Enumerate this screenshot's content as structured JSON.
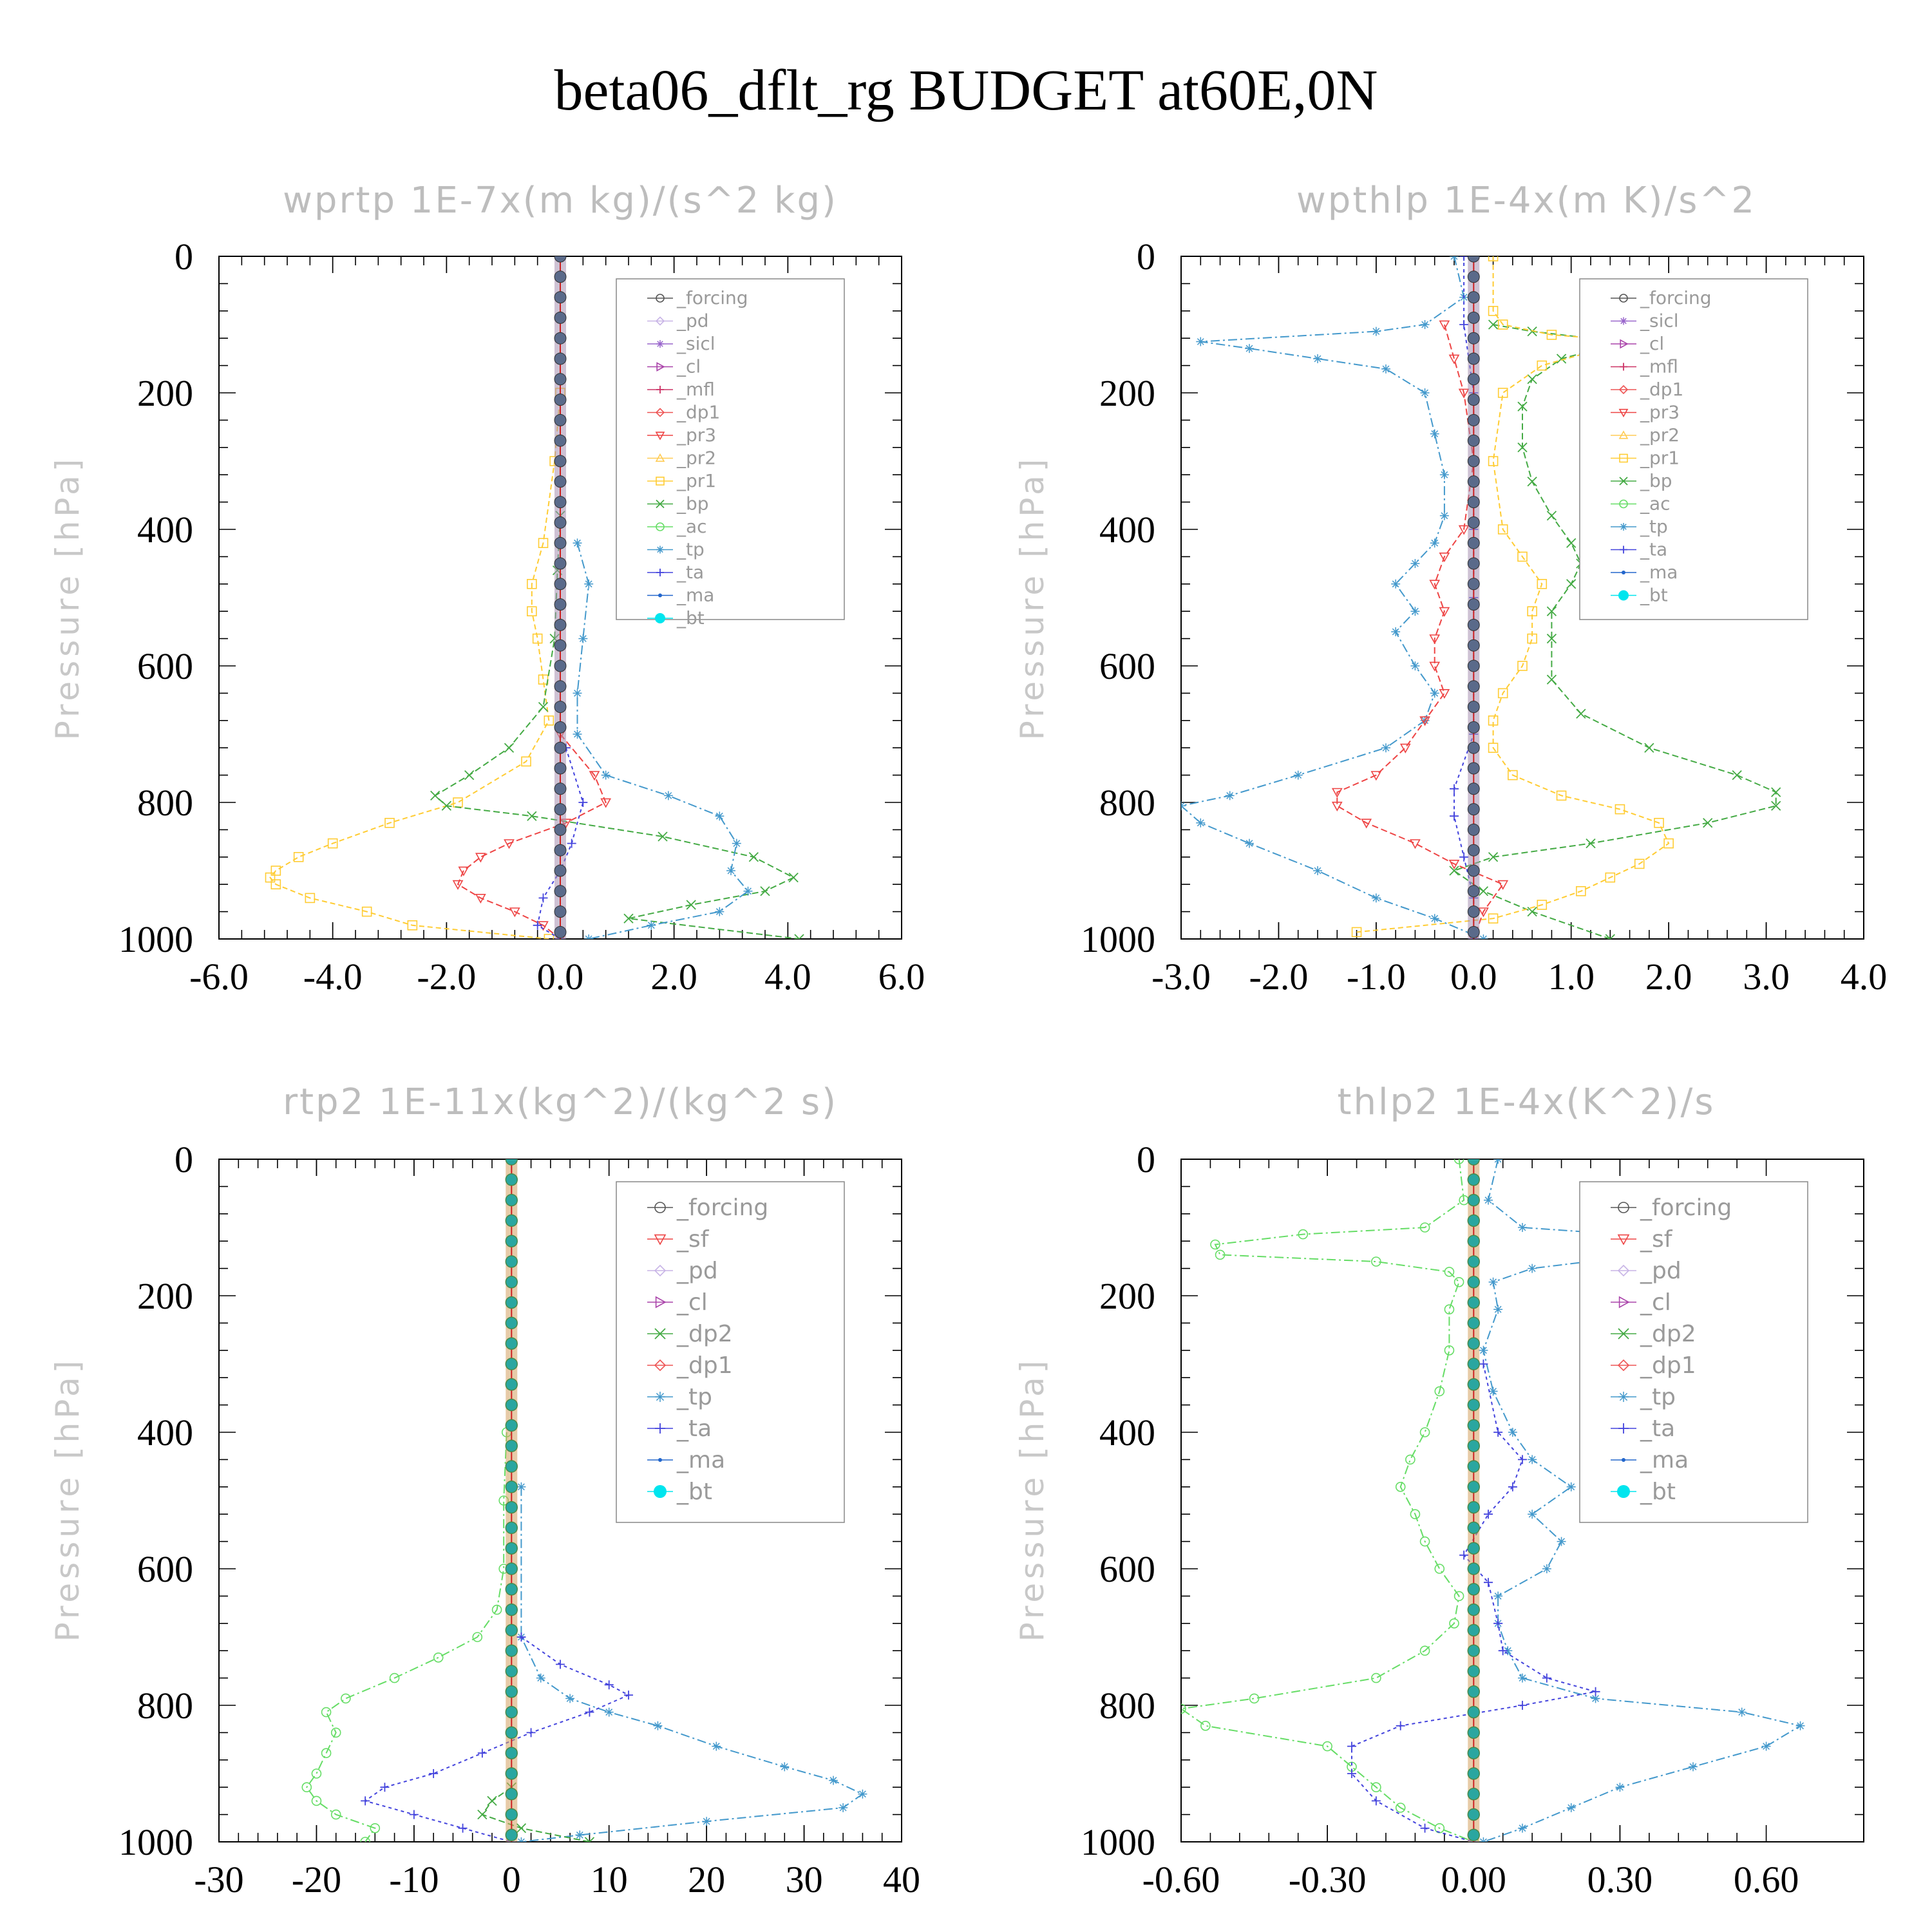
{
  "title": "beta06_dflt_rg  BUDGET at60E,0N",
  "colors": {
    "forcing": "#555555",
    "pd": "#c8b4e6",
    "sicl": "#9966cc",
    "cl": "#aa44aa",
    "mfl": "#cc3366",
    "dp1": "#ee5555",
    "pr3": "#ee4444",
    "pr2": "#ffcc55",
    "pr1": "#ffcc33",
    "bp": "#44aa44",
    "ac": "#66dd66",
    "tp": "#4499cc",
    "ta": "#4444dd",
    "ma": "#2266cc",
    "bt": "#00e5ee"
  },
  "chart_data": [
    {
      "type": "line",
      "title": "wprtp  1E-7x(m kg)/(s^2 kg)",
      "ylabel": "Pressure [hPa]",
      "xlim": [
        -6,
        6
      ],
      "ylim": [
        1000,
        0
      ],
      "xticks": [
        "-6.0",
        "-4.0",
        "-2.0",
        "0.0",
        "2.0",
        "4.0",
        "6.0"
      ],
      "xtick_values": [
        -6,
        -4,
        -2,
        0,
        2,
        4,
        6
      ],
      "yticks": [
        "0",
        "200",
        "400",
        "600",
        "800",
        "1000"
      ],
      "legend": [
        "_forcing",
        "_pd",
        "_sicl",
        "_cl",
        "_mfl",
        "_dp1",
        "_pr3",
        "_pr2",
        "_pr1",
        "_bp",
        "_ac",
        "_tp",
        "_ta",
        "_ma",
        "_bt"
      ],
      "series": [
        {
          "name": "_pr1",
          "color": "pr1",
          "marker": "square",
          "dash": "8,5",
          "p": [
            200,
            300,
            420,
            480,
            520,
            560,
            620,
            680,
            740,
            800,
            830,
            860,
            880,
            900,
            910,
            920,
            940,
            960,
            980,
            1000
          ],
          "x": [
            0,
            -0.1,
            -0.3,
            -0.5,
            -0.5,
            -0.4,
            -0.3,
            -0.2,
            -0.6,
            -1.8,
            -3.0,
            -4.0,
            -4.6,
            -5.0,
            -5.1,
            -5.0,
            -4.4,
            -3.4,
            -2.6,
            -0.2
          ]
        },
        {
          "name": "_bp",
          "color": "bp",
          "marker": "x",
          "dash": "10,5",
          "p": [
            380,
            460,
            560,
            660,
            720,
            760,
            790,
            805,
            820,
            850,
            880,
            910,
            930,
            950,
            970,
            1000
          ],
          "x": [
            0,
            -0.05,
            -0.1,
            -0.3,
            -0.9,
            -1.6,
            -2.2,
            -2.0,
            -0.5,
            1.8,
            3.4,
            4.1,
            3.6,
            2.3,
            1.2,
            4.2
          ]
        },
        {
          "name": "_pr3",
          "color": "pr3",
          "marker": "tri-down",
          "dash": "10,5",
          "p": [
            700,
            760,
            800,
            830,
            860,
            880,
            900,
            920,
            940,
            960,
            980,
            1000
          ],
          "x": [
            0,
            0.6,
            0.8,
            0.1,
            -0.9,
            -1.4,
            -1.7,
            -1.8,
            -1.4,
            -0.8,
            -0.3,
            0
          ]
        },
        {
          "name": "_tp",
          "color": "tp",
          "marker": "star",
          "dash": "14,5,3,5",
          "p": [
            420,
            480,
            560,
            640,
            700,
            760,
            790,
            820,
            860,
            900,
            930,
            960,
            980,
            1000
          ],
          "x": [
            0.3,
            0.5,
            0.4,
            0.3,
            0.3,
            0.8,
            1.9,
            2.8,
            3.1,
            3.0,
            3.3,
            2.8,
            1.6,
            0.5
          ]
        },
        {
          "name": "_ta",
          "color": "ta",
          "marker": "plus",
          "dash": "5,5",
          "p": [
            720,
            800,
            860,
            900,
            940,
            980,
            1000
          ],
          "x": [
            0.1,
            0.4,
            0.2,
            0,
            -0.3,
            -0.4,
            0
          ]
        }
      ]
    },
    {
      "type": "line",
      "title": "wpthlp  1E-4x(m K)/s^2",
      "ylabel": "Pressure [hPa]",
      "xlim": [
        -3,
        4
      ],
      "ylim": [
        1000,
        0
      ],
      "xticks": [
        "-3.0",
        "-2.0",
        "-1.0",
        "0.0",
        "1.0",
        "2.0",
        "3.0",
        "4.0"
      ],
      "xtick_values": [
        -3,
        -2,
        -1,
        0,
        1,
        2,
        3,
        4
      ],
      "yticks": [
        "0",
        "200",
        "400",
        "600",
        "800",
        "1000"
      ],
      "legend": [
        "_forcing",
        "_sicl",
        "_cl",
        "_mfl",
        "_dp1",
        "_pr3",
        "_pr2",
        "_pr1",
        "_bp",
        "_ac",
        "_tp",
        "_ta",
        "_ma",
        "_bt"
      ],
      "series": [
        {
          "name": "_tp",
          "color": "tp",
          "marker": "star",
          "dash": "14,5,3,5",
          "p": [
            0,
            60,
            100,
            110,
            125,
            135,
            150,
            165,
            200,
            260,
            320,
            380,
            420,
            450,
            480,
            520,
            550,
            600,
            640,
            680,
            720,
            760,
            790,
            805,
            830,
            860,
            900,
            940,
            970,
            1000
          ],
          "x": [
            -0.2,
            -0.1,
            -0.5,
            -1.0,
            -2.8,
            -2.3,
            -1.6,
            -0.9,
            -0.5,
            -0.4,
            -0.3,
            -0.3,
            -0.4,
            -0.6,
            -0.8,
            -0.6,
            -0.8,
            -0.6,
            -0.4,
            -0.5,
            -0.9,
            -1.8,
            -2.5,
            -3.0,
            -2.8,
            -2.3,
            -1.6,
            -1.0,
            -0.4,
            0.1
          ]
        },
        {
          "name": "_bp",
          "color": "bp",
          "marker": "x",
          "dash": "10,5",
          "p": [
            100,
            110,
            125,
            135,
            150,
            180,
            220,
            280,
            330,
            380,
            420,
            450,
            480,
            520,
            560,
            620,
            670,
            720,
            760,
            785,
            805,
            830,
            860,
            880,
            900,
            930,
            960,
            1000
          ],
          "x": [
            0.2,
            0.6,
            1.5,
            1.3,
            0.9,
            0.6,
            0.5,
            0.5,
            0.6,
            0.8,
            1.0,
            1.1,
            1.0,
            0.8,
            0.8,
            0.8,
            1.1,
            1.8,
            2.7,
            3.1,
            3.1,
            2.4,
            1.2,
            0.2,
            -0.2,
            0.1,
            0.6,
            1.4
          ]
        },
        {
          "name": "_pr1",
          "color": "pr1",
          "marker": "square",
          "dash": "8,5",
          "p": [
            0,
            80,
            100,
            115,
            125,
            140,
            160,
            200,
            300,
            400,
            440,
            480,
            520,
            560,
            600,
            640,
            680,
            720,
            760,
            790,
            810,
            830,
            860,
            890,
            910,
            930,
            950,
            970,
            990
          ],
          "x": [
            0.2,
            0.2,
            0.3,
            0.8,
            1.7,
            1.2,
            0.7,
            0.3,
            0.2,
            0.3,
            0.5,
            0.7,
            0.6,
            0.6,
            0.5,
            0.3,
            0.2,
            0.2,
            0.4,
            0.9,
            1.5,
            1.9,
            2.0,
            1.7,
            1.4,
            1.1,
            0.7,
            0.2,
            -1.2
          ]
        },
        {
          "name": "_pr3",
          "color": "pr3",
          "marker": "tri-down",
          "dash": "10,5",
          "p": [
            100,
            150,
            200,
            300,
            400,
            440,
            480,
            520,
            560,
            600,
            640,
            680,
            720,
            760,
            785,
            805,
            830,
            860,
            890,
            920,
            960,
            1000
          ],
          "x": [
            -0.3,
            -0.2,
            -0.1,
            0,
            -0.1,
            -0.3,
            -0.4,
            -0.3,
            -0.4,
            -0.4,
            -0.3,
            -0.5,
            -0.7,
            -1.0,
            -1.4,
            -1.4,
            -1.1,
            -0.6,
            -0.2,
            0.3,
            0.1,
            0
          ]
        },
        {
          "name": "_ta",
          "color": "ta",
          "marker": "plus",
          "dash": "5,5",
          "p": [
            0,
            100,
            200,
            300,
            400,
            500,
            600,
            700,
            780,
            820,
            880,
            940,
            1000
          ],
          "x": [
            -0.1,
            -0.1,
            0,
            0,
            0,
            0,
            0,
            0,
            -0.2,
            -0.2,
            -0.1,
            0,
            0
          ]
        }
      ]
    },
    {
      "type": "line",
      "title": "rtp2  1E-11x(kg^2)/(kg^2 s)",
      "ylabel": "Pressure [hPa]",
      "xlim": [
        -30,
        40
      ],
      "ylim": [
        1000,
        0
      ],
      "xticks": [
        "-30",
        "-20",
        "-10",
        "0",
        "10",
        "20",
        "30",
        "40"
      ],
      "xtick_values": [
        -30,
        -20,
        -10,
        0,
        10,
        20,
        30,
        40
      ],
      "yticks": [
        "0",
        "200",
        "400",
        "600",
        "800",
        "1000"
      ],
      "legend": [
        "_forcing",
        "_sf",
        "_pd",
        "_cl",
        "_dp2",
        "_dp1",
        "_tp",
        "_ta",
        "_ma",
        "_bt"
      ],
      "series": [
        {
          "name": "_dp1",
          "color": "ac",
          "marker": "circle",
          "dash": "14,5,3,5",
          "p": [
            400,
            500,
            600,
            660,
            700,
            730,
            760,
            790,
            810,
            840,
            870,
            900,
            920,
            940,
            960,
            980,
            1000
          ],
          "x": [
            -0.5,
            -0.8,
            -0.8,
            -1.5,
            -3.5,
            -7.5,
            -12,
            -17,
            -19,
            -18,
            -19,
            -20,
            -21,
            -20,
            -18,
            -14,
            -15
          ]
        },
        {
          "name": "_tp",
          "color": "tp",
          "marker": "star",
          "dash": "14,5,3,5",
          "p": [
            480,
            700,
            760,
            790,
            810,
            830,
            860,
            890,
            910,
            930,
            950,
            970,
            990,
            1000
          ],
          "x": [
            1,
            1,
            3,
            6,
            10,
            15,
            21,
            28,
            33,
            36,
            34,
            20,
            7,
            1
          ]
        },
        {
          "name": "_ta",
          "color": "ta",
          "marker": "plus",
          "dash": "5,5",
          "p": [
            700,
            740,
            770,
            785,
            810,
            840,
            870,
            900,
            920,
            940,
            960,
            980,
            1000
          ],
          "x": [
            1,
            5,
            10,
            12,
            8,
            2,
            -3,
            -8,
            -13,
            -15,
            -10,
            -5,
            0
          ]
        },
        {
          "name": "_dp2",
          "color": "bp",
          "marker": "x",
          "dash": "10,5",
          "p": [
            920,
            940,
            960,
            980,
            1000
          ],
          "x": [
            0,
            -2,
            -3,
            1,
            8
          ]
        }
      ]
    },
    {
      "type": "line",
      "title": "thlp2  1E-4x(K^2)/s",
      "ylabel": "Pressure [hPa]",
      "xlim": [
        -0.6,
        0.8
      ],
      "ylim": [
        1000,
        0
      ],
      "xticks": [
        "-0.60",
        "-0.30",
        "0.00",
        "0.30",
        "0.60"
      ],
      "xtick_values": [
        -0.6,
        -0.3,
        0,
        0.3,
        0.6
      ],
      "yticks": [
        "0",
        "200",
        "400",
        "600",
        "800",
        "1000"
      ],
      "legend": [
        "_forcing",
        "_sf",
        "_pd",
        "_cl",
        "_dp2",
        "_dp1",
        "_tp",
        "_ta",
        "_ma",
        "_bt"
      ],
      "series": [
        {
          "name": "_dp1",
          "color": "ac",
          "marker": "circle",
          "dash": "14,5,3,5",
          "p": [
            0,
            60,
            100,
            110,
            125,
            140,
            150,
            165,
            180,
            220,
            280,
            340,
            400,
            440,
            480,
            520,
            560,
            600,
            640,
            680,
            720,
            760,
            790,
            805,
            830,
            860,
            890,
            920,
            950,
            980,
            1000
          ],
          "x": [
            -0.03,
            -0.02,
            -0.1,
            -0.35,
            -0.53,
            -0.52,
            -0.2,
            -0.05,
            -0.03,
            -0.05,
            -0.05,
            -0.07,
            -0.1,
            -0.13,
            -0.15,
            -0.12,
            -0.1,
            -0.07,
            -0.03,
            -0.04,
            -0.1,
            -0.2,
            -0.45,
            -0.6,
            -0.55,
            -0.3,
            -0.25,
            -0.2,
            -0.15,
            -0.07,
            0
          ]
        },
        {
          "name": "_tp",
          "color": "tp",
          "marker": "star",
          "dash": "14,5,3,5",
          "p": [
            0,
            60,
            100,
            110,
            125,
            140,
            160,
            180,
            220,
            280,
            340,
            400,
            440,
            480,
            520,
            560,
            600,
            640,
            680,
            720,
            760,
            790,
            810,
            830,
            860,
            890,
            920,
            950,
            980,
            1000
          ],
          "x": [
            0.05,
            0.03,
            0.1,
            0.3,
            0.55,
            0.35,
            0.12,
            0.04,
            0.05,
            0.02,
            0.04,
            0.08,
            0.12,
            0.2,
            0.12,
            0.18,
            0.15,
            0.05,
            0.05,
            0.07,
            0.1,
            0.25,
            0.55,
            0.67,
            0.6,
            0.45,
            0.3,
            0.2,
            0.1,
            0.02
          ]
        },
        {
          "name": "_ta",
          "color": "ta",
          "marker": "plus",
          "dash": "5,5",
          "p": [
            300,
            400,
            440,
            480,
            520,
            580,
            620,
            680,
            720,
            760,
            780,
            800,
            830,
            860,
            900,
            940,
            980,
            1000
          ],
          "x": [
            0.02,
            0.05,
            0.1,
            0.08,
            0.03,
            -0.02,
            0.03,
            0.05,
            0.06,
            0.15,
            0.25,
            0.1,
            -0.15,
            -0.25,
            -0.25,
            -0.2,
            -0.1,
            0
          ]
        }
      ]
    }
  ]
}
